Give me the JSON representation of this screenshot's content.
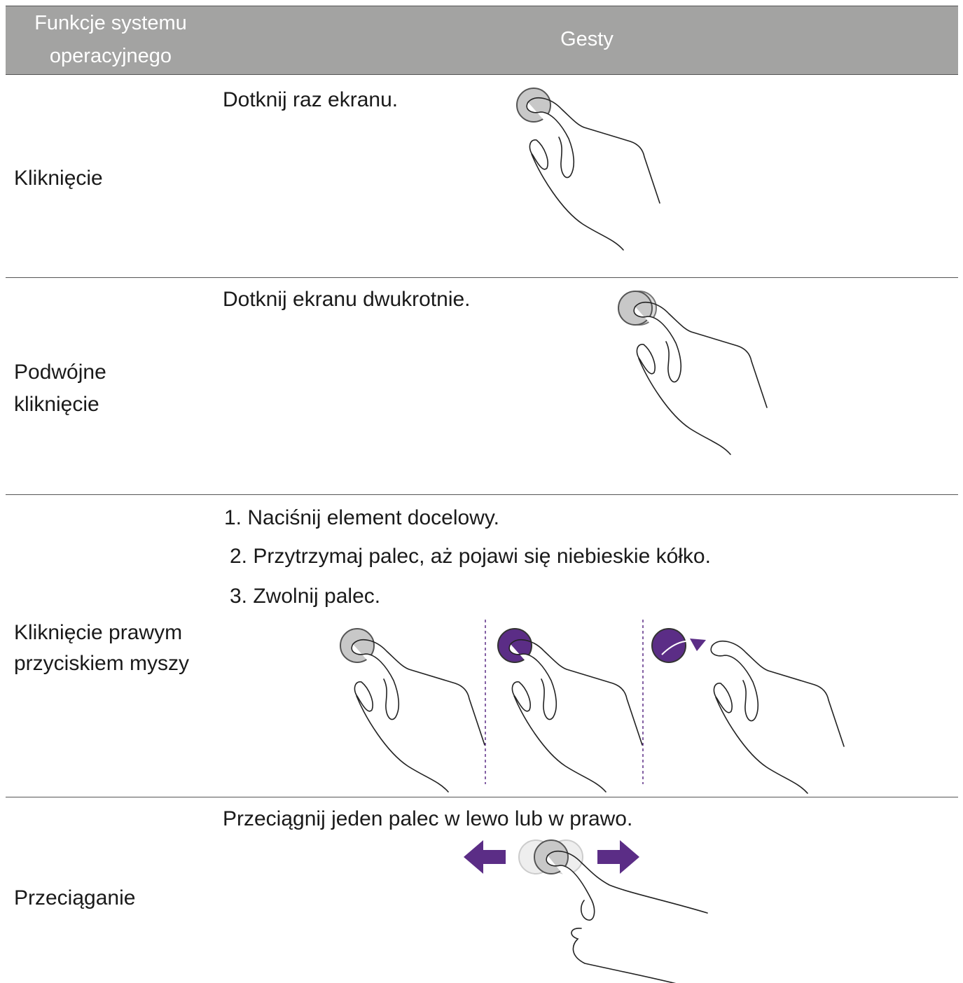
{
  "header": {
    "columns": [
      {
        "lines": [
          "Funkcje systemu",
          "operacyjnego"
        ]
      },
      {
        "lines": [
          "Gesty"
        ]
      }
    ]
  },
  "rows": [
    {
      "label_lines": [
        "Kliknięcie"
      ],
      "instructions": [
        "Dotknij raz ekranu."
      ]
    },
    {
      "label_lines": [
        "Podwójne",
        "kliknięcie"
      ],
      "instructions": [
        "Dotknij ekranu dwukrotnie."
      ]
    },
    {
      "label_lines": [
        "Kliknięcie prawym",
        "przyciskiem myszy"
      ],
      "instructions": [
        "1. Naciśnij element docelowy.",
        "2. Przytrzymaj palec, aż pojawi się niebieskie kółko.",
        "3. Zwolnij palec."
      ]
    },
    {
      "label_lines": [
        "Przeciąganie"
      ],
      "instructions": [
        "Przeciągnij jeden palec w lewo lub w prawo."
      ]
    }
  ]
}
